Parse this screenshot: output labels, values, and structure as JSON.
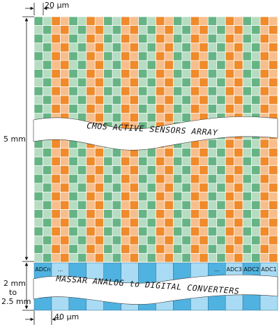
{
  "dimensions": {
    "top_width": "20 µm",
    "array_height": "5 mm",
    "adc_height_line1": "2 mm",
    "adc_height_line2": "to",
    "adc_height_line3": "2.5 mm",
    "bottom_width": "40 µm"
  },
  "array_label": "CMOS ACTIVE SENSORS ARRAY",
  "adc_label": "MASSAR ANALOG to DIGITAL CONVERTERS",
  "adc_cells": [
    "ADCn",
    "...",
    "",
    "",
    "",
    "",
    "",
    "",
    "",
    "",
    "...",
    "ADC3",
    "ADC2",
    "ADC1"
  ],
  "colors": {
    "green_dark": "#66b485",
    "green_light": "#b6dcc2",
    "orange_dark": "#f08a2a",
    "orange_light": "#f7be8c",
    "adc_dark": "#4fb2e0",
    "adc_light": "#a9dcf4",
    "grid_line": "#ffffff"
  }
}
